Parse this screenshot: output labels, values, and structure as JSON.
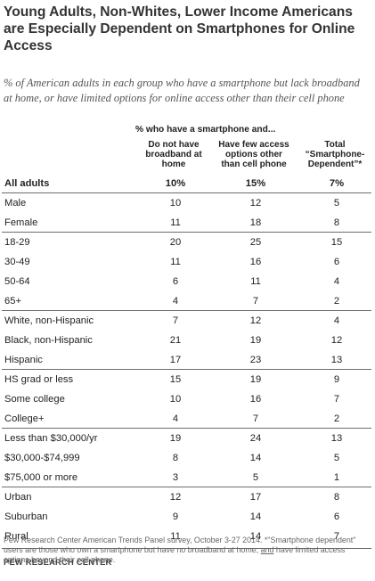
{
  "title": "Young Adults, Non-Whites, Lower Income Americans are Especially Dependent on Smartphones for Online Access",
  "subtitle": "% of American adults in each group who have a smartphone but lack broadband at home, or have limited options for online access other than their cell phone",
  "footnote": {
    "part1": "Pew Research Center American Trends Panel survey, October 3-27 2014. *\"Smartphone dependent\" users are those who own a smartphone but have no broadband at home, ",
    "underlined": "and",
    "part2": " have limited access options beyond their cell phone."
  },
  "source": "PEW RESEARCH CENTER",
  "chart_data": {
    "type": "table",
    "group_header": "% who have a smartphone and...",
    "columns": [
      [
        "Do not have",
        "broadband at",
        "home"
      ],
      [
        "Have few access",
        "options other",
        "than cell phone"
      ],
      [
        "Total",
        "“Smartphone-",
        "Dependent”*"
      ]
    ],
    "rows": [
      {
        "label": "All adults",
        "values": [
          "10%",
          "15%",
          "7%"
        ]
      },
      {
        "label": "Male",
        "values": [
          "10",
          "12",
          "5"
        ]
      },
      {
        "label": "Female",
        "values": [
          "11",
          "18",
          "8"
        ]
      },
      {
        "label": "18-29",
        "values": [
          "20",
          "25",
          "15"
        ]
      },
      {
        "label": "30-49",
        "values": [
          "11",
          "16",
          "6"
        ]
      },
      {
        "label": "50-64",
        "values": [
          "6",
          "11",
          "4"
        ]
      },
      {
        "label": "65+",
        "values": [
          "4",
          "7",
          "2"
        ]
      },
      {
        "label": "White, non-Hispanic",
        "values": [
          "7",
          "12",
          "4"
        ]
      },
      {
        "label": "Black, non-Hispanic",
        "values": [
          "21",
          "19",
          "12"
        ]
      },
      {
        "label": "Hispanic",
        "values": [
          "17",
          "23",
          "13"
        ]
      },
      {
        "label": "HS grad or less",
        "values": [
          "15",
          "19",
          "9"
        ]
      },
      {
        "label": "Some college",
        "values": [
          "10",
          "16",
          "7"
        ]
      },
      {
        "label": "College+",
        "values": [
          "4",
          "7",
          "2"
        ]
      },
      {
        "label": "Less than $30,000/yr",
        "values": [
          "19",
          "24",
          "13"
        ]
      },
      {
        "label": "$30,000-$74,999",
        "values": [
          "8",
          "14",
          "5"
        ]
      },
      {
        "label": "$75,000 or more",
        "values": [
          "3",
          "5",
          "1"
        ]
      },
      {
        "label": "Urban",
        "values": [
          "12",
          "17",
          "8"
        ]
      },
      {
        "label": "Suburban",
        "values": [
          "9",
          "14",
          "6"
        ]
      },
      {
        "label": "Rural",
        "values": [
          "11",
          "14",
          "7"
        ]
      }
    ]
  }
}
